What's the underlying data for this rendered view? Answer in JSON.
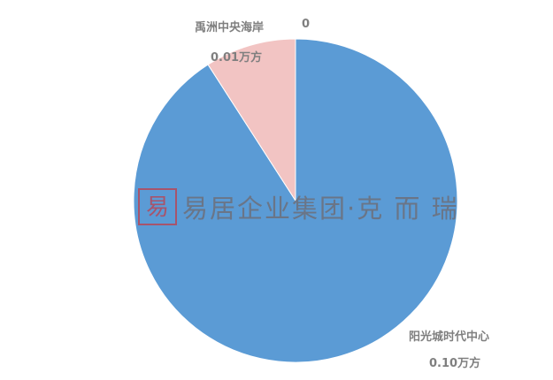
{
  "chart_data": {
    "type": "pie",
    "categories": [
      "阳光城时代中心",
      "禹洲中央海岸",
      ""
    ],
    "values": [
      0.1,
      0.01,
      0
    ],
    "value_labels": [
      "0.10万方",
      "0.01万方",
      "0"
    ],
    "colors": [
      "#5b9bd5",
      "#f2c4c3",
      "#a5a5a5"
    ],
    "start": "top, clockwise",
    "legend": "none"
  },
  "watermark": {
    "seal": "易居",
    "text": "易居企业集团·克 而 瑞"
  }
}
